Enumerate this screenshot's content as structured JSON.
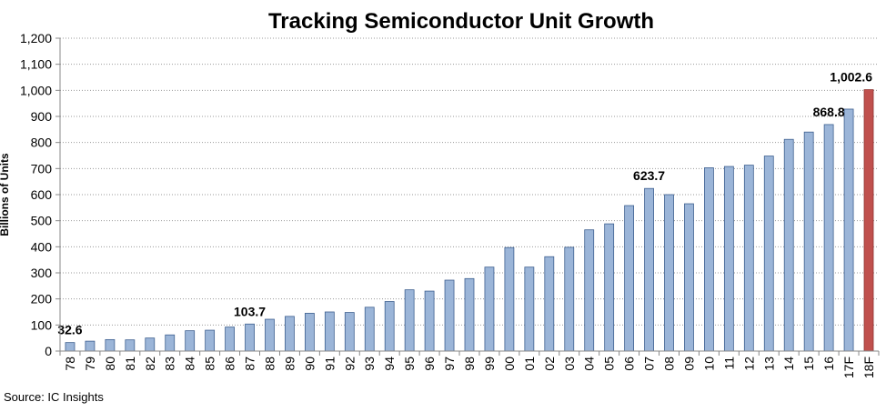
{
  "chart_data": {
    "type": "bar",
    "title": "Tracking Semiconductor Unit Growth",
    "xlabel": "",
    "ylabel": "Billions of Units",
    "ylim": [
      0,
      1200
    ],
    "yticks": [
      "0",
      "100",
      "200",
      "300",
      "400",
      "500",
      "600",
      "700",
      "800",
      "900",
      "1,000",
      "1,100",
      "1,200"
    ],
    "ytick_values": [
      0,
      100,
      200,
      300,
      400,
      500,
      600,
      700,
      800,
      900,
      1000,
      1100,
      1200
    ],
    "grid": true,
    "categories": [
      "78",
      "79",
      "80",
      "81",
      "82",
      "83",
      "84",
      "85",
      "86",
      "87",
      "88",
      "89",
      "90",
      "91",
      "92",
      "93",
      "94",
      "95",
      "96",
      "97",
      "98",
      "99",
      "00",
      "01",
      "02",
      "03",
      "04",
      "05",
      "06",
      "07",
      "08",
      "09",
      "10",
      "11",
      "12",
      "13",
      "14",
      "15",
      "16",
      "17F",
      "18F"
    ],
    "values": [
      32.6,
      38,
      44,
      43,
      50,
      62,
      78,
      80,
      92,
      103.7,
      122,
      133,
      145,
      150,
      148,
      168,
      190,
      235,
      230,
      272,
      278,
      322,
      397,
      322,
      362,
      398,
      465,
      488,
      558,
      623.7,
      600,
      565,
      703,
      708,
      713,
      748,
      812,
      840,
      868.8,
      928,
      1002.6
    ],
    "series_color": "#9bb5d8",
    "highlight_color": "#c0504d",
    "highlight_categories": [
      "18F"
    ],
    "data_labels": [
      {
        "category": "78",
        "text": "32.6"
      },
      {
        "category": "87",
        "text": "103.7"
      },
      {
        "category": "07",
        "text": "623.7"
      },
      {
        "category": "16",
        "text": "868.8"
      },
      {
        "category": "18F",
        "text": "1,002.6"
      }
    ],
    "source": "Source:  IC Insights"
  }
}
